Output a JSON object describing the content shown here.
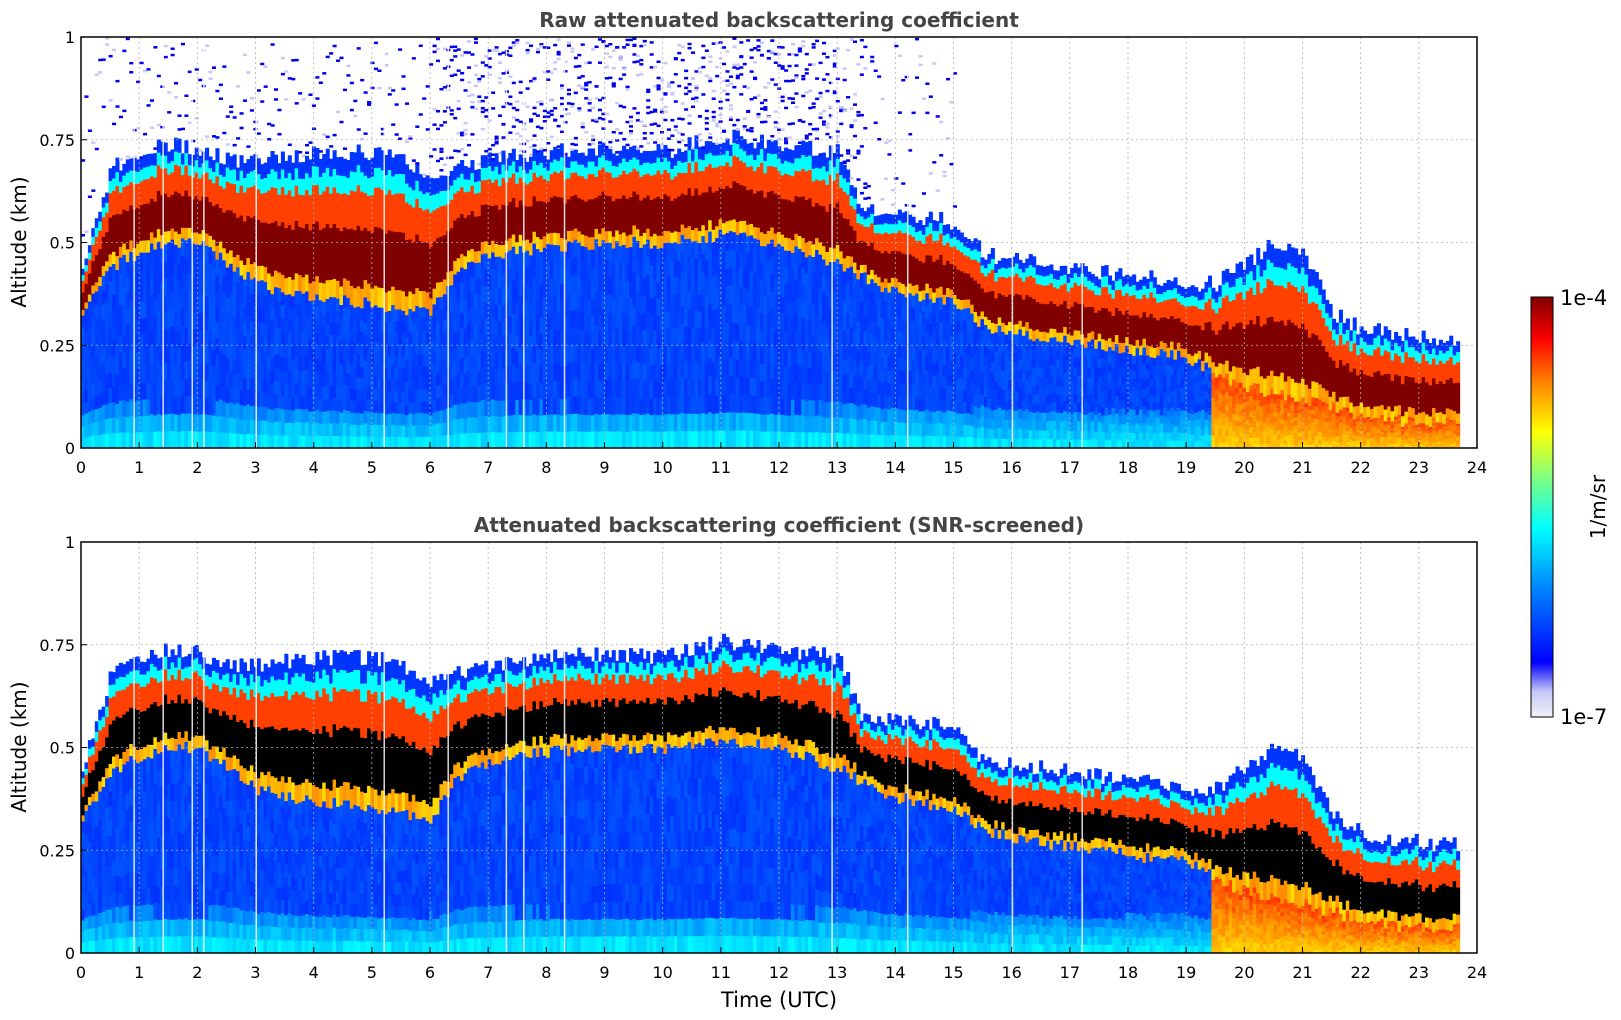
{
  "colors": {
    "background": "#ffffff",
    "axis": "#000000",
    "grid": "#b0b0b0",
    "title": "#444444",
    "cloud_core": "#800000",
    "clipped_black": "#000000",
    "screened_low": "#f0f0fa"
  },
  "chart_data": [
    {
      "type": "heatmap",
      "title": "Raw attenuated backscattering coefficient",
      "xlabel": "",
      "ylabel": "Altitude (km)",
      "xlim": [
        0,
        24
      ],
      "ylim": [
        0,
        1
      ],
      "xticks": [
        "0",
        "1",
        "2",
        "3",
        "4",
        "5",
        "6",
        "7",
        "8",
        "9",
        "10",
        "11",
        "12",
        "13",
        "14",
        "15",
        "16",
        "17",
        "18",
        "19",
        "20",
        "21",
        "22",
        "23",
        "24"
      ],
      "yticks": [
        "0",
        "0.25",
        "0.5",
        "0.75",
        "1"
      ],
      "grid": true,
      "screened": false,
      "data_end_hour": 23.7,
      "cloud_base_km": [
        [
          0,
          0.33
        ],
        [
          0.5,
          0.44
        ],
        [
          1,
          0.48
        ],
        [
          1.5,
          0.5
        ],
        [
          2,
          0.5
        ],
        [
          2.5,
          0.45
        ],
        [
          3,
          0.4
        ],
        [
          3.5,
          0.38
        ],
        [
          4,
          0.37
        ],
        [
          4.5,
          0.36
        ],
        [
          5,
          0.35
        ],
        [
          5.5,
          0.34
        ],
        [
          6,
          0.33
        ],
        [
          6.4,
          0.42
        ],
        [
          7,
          0.47
        ],
        [
          8,
          0.49
        ],
        [
          9,
          0.5
        ],
        [
          10,
          0.5
        ],
        [
          11,
          0.52
        ],
        [
          12,
          0.5
        ],
        [
          13,
          0.45
        ],
        [
          13.5,
          0.41
        ],
        [
          14,
          0.38
        ],
        [
          15,
          0.35
        ],
        [
          15.5,
          0.3
        ],
        [
          16,
          0.28
        ],
        [
          17,
          0.26
        ],
        [
          18,
          0.24
        ],
        [
          19,
          0.22
        ],
        [
          19.5,
          0.18
        ],
        [
          20,
          0.15
        ],
        [
          21,
          0.12
        ],
        [
          22,
          0.08
        ],
        [
          23,
          0.06
        ],
        [
          23.7,
          0.06
        ]
      ],
      "cloud_top_km": [
        [
          0,
          0.45
        ],
        [
          0.5,
          0.68
        ],
        [
          1,
          0.72
        ],
        [
          1.5,
          0.74
        ],
        [
          2,
          0.73
        ],
        [
          2.5,
          0.7
        ],
        [
          3,
          0.7
        ],
        [
          3.5,
          0.71
        ],
        [
          4,
          0.72
        ],
        [
          4.5,
          0.72
        ],
        [
          5,
          0.72
        ],
        [
          5.5,
          0.7
        ],
        [
          6,
          0.66
        ],
        [
          6.4,
          0.68
        ],
        [
          7,
          0.7
        ],
        [
          8,
          0.72
        ],
        [
          9,
          0.73
        ],
        [
          10,
          0.72
        ],
        [
          11,
          0.76
        ],
        [
          12,
          0.74
        ],
        [
          13,
          0.72
        ],
        [
          13.4,
          0.58
        ],
        [
          14,
          0.57
        ],
        [
          15,
          0.55
        ],
        [
          15.5,
          0.47
        ],
        [
          16,
          0.46
        ],
        [
          17,
          0.44
        ],
        [
          18,
          0.42
        ],
        [
          19,
          0.4
        ],
        [
          19.5,
          0.4
        ],
        [
          20,
          0.45
        ],
        [
          20.5,
          0.5
        ],
        [
          21,
          0.48
        ],
        [
          21.5,
          0.33
        ],
        [
          22,
          0.29
        ],
        [
          23,
          0.27
        ],
        [
          23.7,
          0.26
        ]
      ],
      "precipitation_onset_hour": 19.4,
      "log10_scale_min": -7,
      "log10_scale_max": -4
    },
    {
      "type": "heatmap",
      "title": "Attenuated backscattering coefficient (SNR-screened)",
      "xlabel": "Time (UTC)",
      "ylabel": "Altitude (km)",
      "xlim": [
        0,
        24
      ],
      "ylim": [
        0,
        1
      ],
      "xticks": [
        "0",
        "1",
        "2",
        "3",
        "4",
        "5",
        "6",
        "7",
        "8",
        "9",
        "10",
        "11",
        "12",
        "13",
        "14",
        "15",
        "16",
        "17",
        "18",
        "19",
        "20",
        "21",
        "22",
        "23",
        "24"
      ],
      "yticks": [
        "0",
        "0.25",
        "0.5",
        "0.75",
        "1"
      ],
      "grid": true,
      "screened": true,
      "data_end_hour": 23.7,
      "cloud_base_km": [
        [
          0,
          0.33
        ],
        [
          0.5,
          0.44
        ],
        [
          1,
          0.48
        ],
        [
          1.5,
          0.5
        ],
        [
          2,
          0.5
        ],
        [
          2.5,
          0.45
        ],
        [
          3,
          0.4
        ],
        [
          3.5,
          0.38
        ],
        [
          4,
          0.37
        ],
        [
          4.5,
          0.36
        ],
        [
          5,
          0.35
        ],
        [
          5.5,
          0.34
        ],
        [
          6,
          0.33
        ],
        [
          6.4,
          0.42
        ],
        [
          7,
          0.47
        ],
        [
          8,
          0.49
        ],
        [
          9,
          0.5
        ],
        [
          10,
          0.5
        ],
        [
          11,
          0.52
        ],
        [
          12,
          0.5
        ],
        [
          13,
          0.45
        ],
        [
          13.5,
          0.41
        ],
        [
          14,
          0.38
        ],
        [
          15,
          0.35
        ],
        [
          15.5,
          0.3
        ],
        [
          16,
          0.28
        ],
        [
          17,
          0.26
        ],
        [
          18,
          0.24
        ],
        [
          19,
          0.22
        ],
        [
          19.5,
          0.18
        ],
        [
          20,
          0.15
        ],
        [
          21,
          0.12
        ],
        [
          22,
          0.08
        ],
        [
          23,
          0.06
        ],
        [
          23.7,
          0.06
        ]
      ],
      "cloud_top_km": [
        [
          0,
          0.45
        ],
        [
          0.5,
          0.68
        ],
        [
          1,
          0.72
        ],
        [
          1.5,
          0.74
        ],
        [
          2,
          0.73
        ],
        [
          2.5,
          0.7
        ],
        [
          3,
          0.7
        ],
        [
          3.5,
          0.71
        ],
        [
          4,
          0.72
        ],
        [
          4.5,
          0.72
        ],
        [
          5,
          0.72
        ],
        [
          5.5,
          0.7
        ],
        [
          6,
          0.66
        ],
        [
          6.4,
          0.68
        ],
        [
          7,
          0.7
        ],
        [
          8,
          0.72
        ],
        [
          9,
          0.73
        ],
        [
          10,
          0.72
        ],
        [
          11,
          0.76
        ],
        [
          12,
          0.74
        ],
        [
          13,
          0.72
        ],
        [
          13.4,
          0.58
        ],
        [
          14,
          0.57
        ],
        [
          15,
          0.55
        ],
        [
          15.5,
          0.47
        ],
        [
          16,
          0.46
        ],
        [
          17,
          0.44
        ],
        [
          18,
          0.42
        ],
        [
          19,
          0.4
        ],
        [
          19.5,
          0.4
        ],
        [
          20,
          0.45
        ],
        [
          20.5,
          0.5
        ],
        [
          21,
          0.48
        ],
        [
          21.5,
          0.33
        ],
        [
          22,
          0.29
        ],
        [
          23,
          0.27
        ],
        [
          23.7,
          0.26
        ]
      ],
      "precipitation_onset_hour": 19.4,
      "log10_scale_min": -7,
      "log10_scale_max": -4
    }
  ],
  "colorbar": {
    "label": "1/m/sr",
    "max_label": "1e-4",
    "min_label": "1e-7",
    "colormap": "jet",
    "colors": [
      "#f0f0fa",
      "#c8c8f5",
      "#0000ff",
      "#0080ff",
      "#00ffff",
      "#80ff80",
      "#ffff00",
      "#ff8000",
      "#ff0000",
      "#800000"
    ]
  }
}
